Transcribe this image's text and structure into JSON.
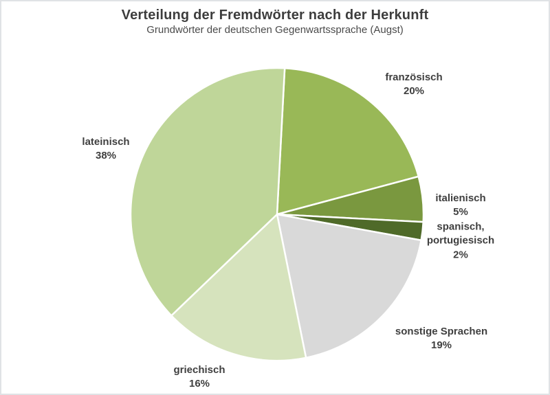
{
  "header": {
    "title": "Verteilung der Fremdwörter nach der Herkunft",
    "subtitle": "Grundwörter der deutschen Gegenwartssprache (Augst)"
  },
  "chart_data": {
    "type": "pie",
    "title": "Verteilung der Fremdwörter nach der Herkunft",
    "subtitle": "Grundwörter der deutschen Gegenwartssprache (Augst)",
    "unit": "%",
    "direction": "clockwise",
    "start_angle_deg": 3,
    "label_color": "#3f3f3f",
    "divider_color": "#ffffff",
    "categories": [
      "französisch",
      "italienisch",
      "spanisch, portugiesisch",
      "sonstige Sprachen",
      "griechisch",
      "lateinisch"
    ],
    "values": [
      20,
      5,
      2,
      19,
      16,
      38
    ],
    "slices": [
      {
        "id": "franzoesisch",
        "label_lines": [
          "französisch",
          "20%"
        ],
        "value": 20,
        "color": "#99b857"
      },
      {
        "id": "italienisch",
        "label_lines": [
          "italienisch",
          "5%"
        ],
        "value": 5,
        "color": "#7a983f"
      },
      {
        "id": "spanisch-portugiesisch",
        "label_lines": [
          "spanisch,",
          "portugiesisch",
          "2%"
        ],
        "value": 2,
        "color": "#4f6a29"
      },
      {
        "id": "sonstige-sprachen",
        "label_lines": [
          "sonstige Sprachen",
          "19%"
        ],
        "value": 19,
        "color": "#d9d9d9"
      },
      {
        "id": "griechisch",
        "label_lines": [
          "griechisch",
          "16%"
        ],
        "value": 16,
        "color": "#d6e3bd"
      },
      {
        "id": "lateinisch",
        "label_lines": [
          "lateinisch",
          "38%"
        ],
        "value": 38,
        "color": "#bfd699"
      }
    ]
  }
}
